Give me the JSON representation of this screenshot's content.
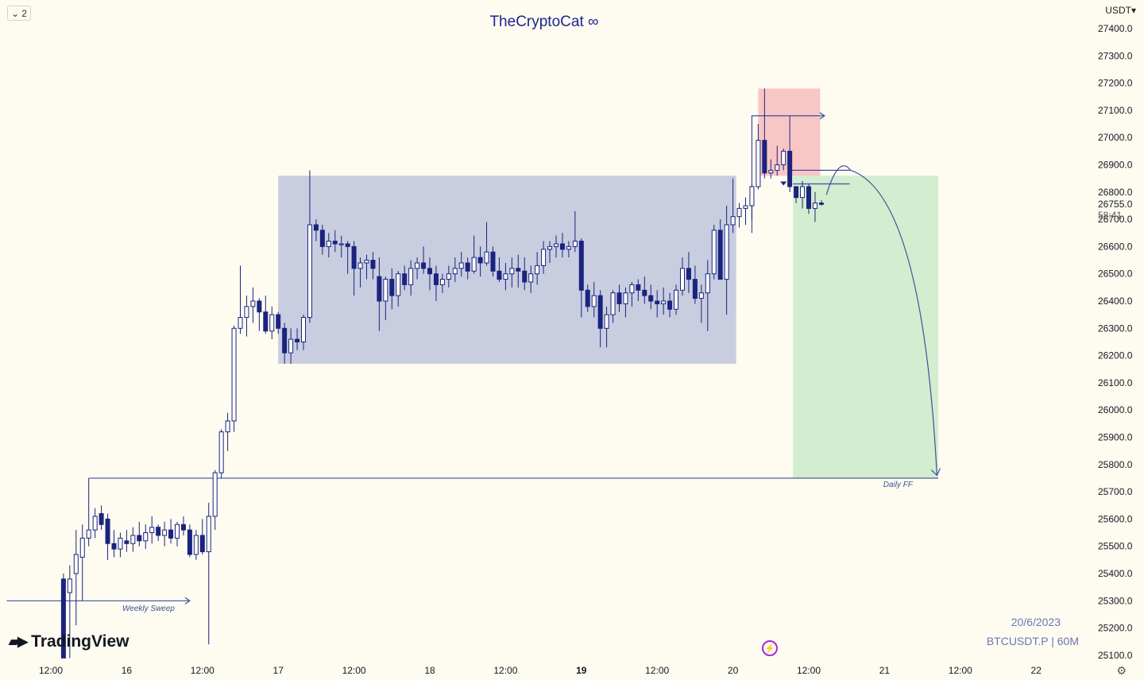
{
  "header": {
    "layout_badge": "2",
    "chart_title": "TheCryptoCat ∞",
    "currency": "USDT"
  },
  "footer": {
    "logo_text": "TradingView",
    "date": "20/6/2023",
    "symbol": "BTCUSDT.P | 60M"
  },
  "price_tag": {
    "last_price": "26755.0",
    "countdown": "58:41"
  },
  "annotations": {
    "weekly_sweep": "Weekly Sweep",
    "daily_ff": "Daily FF"
  },
  "colors": {
    "background": "#fefbf0",
    "candle": "#1a237e",
    "range_box": "#c8cde0",
    "stop_zone": "#f9c6c6",
    "target_zone": "#d2edcf",
    "line": "#3d4f9e"
  },
  "chart_data": {
    "type": "candlestick",
    "symbol": "BTCUSDT.P",
    "timeframe": "60M",
    "ylim": [
      25100,
      27400
    ],
    "y_ticks": [
      27400,
      27300,
      27200,
      27100,
      27000,
      26900,
      26800,
      26700,
      26600,
      26500,
      26400,
      26300,
      26200,
      26100,
      26000,
      25900,
      25800,
      25700,
      25600,
      25500,
      25400,
      25300,
      25200,
      25100
    ],
    "x_labels": [
      {
        "pos": 0,
        "label": "12:00",
        "bold": false
      },
      {
        "pos": 12,
        "label": "16",
        "bold": false
      },
      {
        "pos": 24,
        "label": "12:00",
        "bold": false
      },
      {
        "pos": 36,
        "label": "17",
        "bold": false
      },
      {
        "pos": 48,
        "label": "12:00",
        "bold": false
      },
      {
        "pos": 60,
        "label": "18",
        "bold": false
      },
      {
        "pos": 72,
        "label": "12:00",
        "bold": false
      },
      {
        "pos": 84,
        "label": "19",
        "bold": true
      },
      {
        "pos": 96,
        "label": "12:00",
        "bold": false
      },
      {
        "pos": 108,
        "label": "20",
        "bold": false
      },
      {
        "pos": 120,
        "label": "12:00",
        "bold": false
      },
      {
        "pos": 132,
        "label": "21",
        "bold": false
      },
      {
        "pos": 144,
        "label": "12:00",
        "bold": false
      },
      {
        "pos": 156,
        "label": "22",
        "bold": false
      }
    ],
    "ohlc": [
      [
        2,
        25380,
        25400,
        25090,
        25090
      ],
      [
        3,
        25330,
        25430,
        25090,
        25380
      ],
      [
        4,
        25400,
        25560,
        25210,
        25470
      ],
      [
        5,
        25460,
        25580,
        25300,
        25530
      ],
      [
        6,
        25530,
        25750,
        25500,
        25560
      ],
      [
        7,
        25560,
        25640,
        25530,
        25610
      ],
      [
        8,
        25620,
        25650,
        25560,
        25580
      ],
      [
        9,
        25600,
        25620,
        25450,
        25510
      ],
      [
        10,
        25510,
        25560,
        25460,
        25490
      ],
      [
        11,
        25490,
        25550,
        25460,
        25530
      ],
      [
        12,
        25520,
        25560,
        25480,
        25510
      ],
      [
        13,
        25510,
        25570,
        25480,
        25540
      ],
      [
        14,
        25540,
        25590,
        25500,
        25520
      ],
      [
        15,
        25520,
        25580,
        25490,
        25550
      ],
      [
        16,
        25550,
        25610,
        25510,
        25570
      ],
      [
        17,
        25570,
        25580,
        25520,
        25540
      ],
      [
        18,
        25540,
        25590,
        25500,
        25560
      ],
      [
        19,
        25560,
        25600,
        25510,
        25530
      ],
      [
        20,
        25530,
        25590,
        25500,
        25580
      ],
      [
        21,
        25580,
        25610,
        25540,
        25560
      ],
      [
        22,
        25560,
        25580,
        25460,
        25470
      ],
      [
        23,
        25470,
        25560,
        25450,
        25540
      ],
      [
        24,
        25540,
        25600,
        25470,
        25480
      ],
      [
        25,
        25480,
        25660,
        25140,
        25610
      ],
      [
        26,
        25610,
        25780,
        25560,
        25770
      ],
      [
        27,
        25770,
        25930,
        25750,
        25920
      ],
      [
        28,
        25920,
        25990,
        25850,
        25960
      ],
      [
        29,
        25960,
        26310,
        25920,
        26300
      ],
      [
        30,
        26300,
        26530,
        26280,
        26340
      ],
      [
        31,
        26340,
        26420,
        26270,
        26380
      ],
      [
        32,
        26380,
        26450,
        26320,
        26400
      ],
      [
        33,
        26400,
        26410,
        26290,
        26360
      ],
      [
        34,
        26360,
        26420,
        26280,
        26290
      ],
      [
        35,
        26290,
        26380,
        26260,
        26350
      ],
      [
        36,
        26350,
        26360,
        26280,
        26300
      ],
      [
        37,
        26300,
        26320,
        26170,
        26210
      ],
      [
        38,
        26210,
        26300,
        26170,
        26260
      ],
      [
        39,
        26260,
        26300,
        26220,
        26250
      ],
      [
        40,
        26250,
        26350,
        26220,
        26340
      ],
      [
        41,
        26340,
        26880,
        26320,
        26680
      ],
      [
        42,
        26680,
        26700,
        26620,
        26660
      ],
      [
        43,
        26660,
        26680,
        26570,
        26600
      ],
      [
        44,
        26600,
        26650,
        26560,
        26620
      ],
      [
        45,
        26620,
        26660,
        26580,
        26610
      ],
      [
        46,
        26610,
        26640,
        26560,
        26610
      ],
      [
        47,
        26610,
        26620,
        26500,
        26600
      ],
      [
        48,
        26600,
        26620,
        26420,
        26520
      ],
      [
        49,
        26520,
        26560,
        26450,
        26540
      ],
      [
        50,
        26540,
        26570,
        26480,
        26550
      ],
      [
        51,
        26550,
        26580,
        26480,
        26520
      ],
      [
        52,
        26490,
        26560,
        26290,
        26400
      ],
      [
        53,
        26400,
        26490,
        26330,
        26480
      ],
      [
        54,
        26480,
        26520,
        26370,
        26420
      ],
      [
        55,
        26420,
        26510,
        26380,
        26500
      ],
      [
        56,
        26500,
        26530,
        26440,
        26460
      ],
      [
        57,
        26460,
        26550,
        26420,
        26520
      ],
      [
        58,
        26520,
        26560,
        26480,
        26540
      ],
      [
        59,
        26540,
        26600,
        26500,
        26520
      ],
      [
        60,
        26520,
        26560,
        26440,
        26500
      ],
      [
        61,
        26500,
        26530,
        26400,
        26460
      ],
      [
        62,
        26460,
        26500,
        26430,
        26480
      ],
      [
        63,
        26480,
        26530,
        26450,
        26500
      ],
      [
        64,
        26500,
        26560,
        26470,
        26520
      ],
      [
        65,
        26520,
        26580,
        26490,
        26540
      ],
      [
        66,
        26540,
        26560,
        26480,
        26510
      ],
      [
        67,
        26510,
        26640,
        26500,
        26560
      ],
      [
        68,
        26560,
        26600,
        26490,
        26540
      ],
      [
        69,
        26540,
        26690,
        26530,
        26580
      ],
      [
        70,
        26580,
        26600,
        26490,
        26510
      ],
      [
        71,
        26510,
        26560,
        26470,
        26480
      ],
      [
        72,
        26480,
        26540,
        26440,
        26500
      ],
      [
        73,
        26500,
        26560,
        26450,
        26520
      ],
      [
        74,
        26520,
        26570,
        26450,
        26510
      ],
      [
        75,
        26510,
        26560,
        26440,
        26470
      ],
      [
        76,
        26470,
        26530,
        26430,
        26500
      ],
      [
        77,
        26500,
        26580,
        26460,
        26530
      ],
      [
        78,
        26530,
        26620,
        26500,
        26590
      ],
      [
        79,
        26590,
        26620,
        26540,
        26600
      ],
      [
        80,
        26600,
        26640,
        26560,
        26610
      ],
      [
        81,
        26610,
        26650,
        26560,
        26590
      ],
      [
        82,
        26590,
        26620,
        26560,
        26600
      ],
      [
        83,
        26600,
        26730,
        26580,
        26620
      ],
      [
        84,
        26620,
        26630,
        26340,
        26440
      ],
      [
        85,
        26440,
        26460,
        26360,
        26380
      ],
      [
        86,
        26380,
        26470,
        26340,
        26420
      ],
      [
        87,
        26420,
        26440,
        26230,
        26300
      ],
      [
        88,
        26300,
        26380,
        26230,
        26350
      ],
      [
        89,
        26350,
        26440,
        26320,
        26430
      ],
      [
        90,
        26430,
        26460,
        26360,
        26390
      ],
      [
        91,
        26390,
        26450,
        26340,
        26430
      ],
      [
        92,
        26430,
        26470,
        26380,
        26460
      ],
      [
        93,
        26460,
        26480,
        26400,
        26440
      ],
      [
        94,
        26440,
        26490,
        26390,
        26420
      ],
      [
        95,
        26420,
        26460,
        26370,
        26400
      ],
      [
        96,
        26400,
        26440,
        26340,
        26390
      ],
      [
        97,
        26390,
        26450,
        26350,
        26400
      ],
      [
        98,
        26400,
        26430,
        26340,
        26370
      ],
      [
        99,
        26370,
        26460,
        26350,
        26440
      ],
      [
        100,
        26440,
        26560,
        26420,
        26520
      ],
      [
        101,
        26520,
        26580,
        26430,
        26480
      ],
      [
        102,
        26480,
        26530,
        26390,
        26410
      ],
      [
        103,
        26410,
        26460,
        26320,
        26430
      ],
      [
        104,
        26430,
        26550,
        26290,
        26500
      ],
      [
        105,
        26500,
        26680,
        26480,
        26660
      ],
      [
        106,
        26660,
        26700,
        26480,
        26480
      ],
      [
        107,
        26480,
        26750,
        26350,
        26680
      ],
      [
        108,
        26680,
        26850,
        26650,
        26710
      ],
      [
        109,
        26710,
        26760,
        26670,
        26740
      ],
      [
        110,
        26740,
        26780,
        26680,
        26750
      ],
      [
        111,
        26750,
        26830,
        26700,
        26820
      ],
      [
        112,
        26820,
        27050,
        26810,
        26990
      ],
      [
        113,
        26990,
        27180,
        26850,
        26870
      ],
      [
        114,
        26870,
        26920,
        26850,
        26880
      ],
      [
        115,
        26880,
        26970,
        26860,
        26900
      ],
      [
        116,
        26900,
        26960,
        26880,
        26950
      ],
      [
        117,
        26950,
        27080,
        26800,
        26820
      ],
      [
        118,
        26820,
        26820,
        26760,
        26780
      ],
      [
        119,
        26780,
        26840,
        26740,
        26820
      ],
      [
        120,
        26820,
        26830,
        26720,
        26740
      ],
      [
        121,
        26740,
        26800,
        26690,
        26760
      ],
      [
        122,
        26760,
        26770,
        26750,
        26755
      ]
    ],
    "zones": {
      "range_box": {
        "x0": 36,
        "x1": 108.5,
        "y_top": 26860,
        "y_bottom": 26170
      },
      "stop_zone": {
        "x0": 112,
        "x1": 121.8,
        "y_top": 27180,
        "y_bottom": 26860
      },
      "target_zone": {
        "x0": 117.5,
        "x1": 140.5,
        "y_top": 26860,
        "y_bottom": 25750
      }
    },
    "lines": {
      "daily_ff": {
        "x0": 6,
        "x1": 140.5,
        "y": 25750,
        "start_y": 25750
      },
      "weekly_sweep": {
        "x0": -7,
        "x1": 22,
        "y": 25300
      },
      "high_ray": {
        "x0": 111,
        "x1": 122.5,
        "y": 27080
      },
      "entry_ray_1": {
        "x0": 117,
        "x1": 126.5,
        "y": 26880
      },
      "entry_ray_2": {
        "x0": 117.5,
        "x1": 126.5,
        "y": 26830
      }
    },
    "projection": {
      "start": [
        122.8,
        26790
      ],
      "peak": [
        126,
        26880
      ],
      "end": [
        140.3,
        25760
      ]
    },
    "pivot_marker": {
      "x": 116,
      "y": 26830
    }
  }
}
